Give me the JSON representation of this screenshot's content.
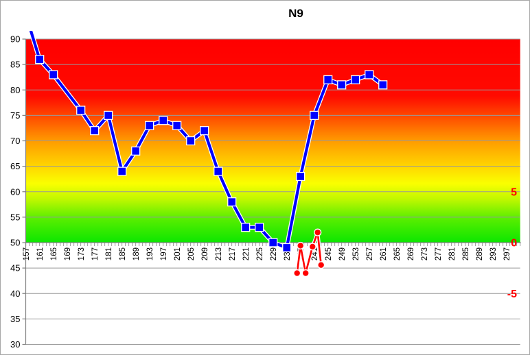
{
  "chart_data": {
    "type": "line",
    "title": "N9",
    "legend": "none",
    "x_axis": {
      "labels": [
        "157",
        "161",
        "165",
        "169",
        "173",
        "177",
        "181",
        "185",
        "189",
        "193",
        "197",
        "201",
        "205",
        "209",
        "213",
        "217",
        "221",
        "225",
        "229",
        "233",
        "237",
        "241",
        "245",
        "249",
        "253",
        "257",
        "261",
        "265",
        "269",
        "273",
        "277",
        "281",
        "285",
        "289",
        "293",
        "297"
      ],
      "label_start": 157,
      "label_step": 4,
      "category_min": 157,
      "category_max": 301,
      "minor_tick_every": 1,
      "label_rotation": "vertical-bottom-to-top"
    },
    "y_left": {
      "min": 30,
      "max": 90,
      "step": 5,
      "labels": [
        90,
        85,
        80,
        75,
        70,
        65,
        60,
        55,
        50,
        45,
        40,
        35,
        30
      ],
      "axis_crosses_at": 50,
      "label_color": "#000000"
    },
    "y_right": {
      "labels": [
        "5",
        "0",
        "-5"
      ],
      "values": [
        5,
        0,
        -5
      ],
      "label_color": "#FF0000",
      "alignment_note": "right 0 aligns with left 50, right 5 with left 60, right -5 with left 40"
    },
    "series": [
      {
        "name": "main-line",
        "color": "#0000FF",
        "marker": "square",
        "axis": "left",
        "x": [
          161,
          165,
          173,
          177,
          181,
          185,
          189,
          193,
          197,
          201,
          205,
          209,
          213,
          217,
          221,
          225,
          229,
          233,
          237,
          241,
          245,
          249,
          253,
          257,
          261
        ],
        "y": [
          86,
          83,
          76,
          72,
          75,
          64,
          68,
          73,
          74,
          73,
          70,
          72,
          64,
          58,
          53,
          53,
          50,
          49,
          63,
          75,
          82,
          81,
          82,
          83,
          81
        ],
        "clipped_entry": {
          "x": 158.5,
          "y": 91.5,
          "note": "line enters clipped at plot top above 90"
        }
      },
      {
        "name": "secondary-line",
        "color": "#FF0000",
        "marker": "circle",
        "axis": "right",
        "x": [
          236,
          237,
          238.5,
          240.5,
          242,
          243
        ],
        "y": [
          -3,
          -0.3,
          -3,
          -0.4,
          1,
          -2.2
        ]
      }
    ],
    "plot_background": {
      "type": "vertical-gradient",
      "from_value": 90,
      "to_value": 50,
      "below_color": "#FFFFFF",
      "stops": [
        {
          "offset": 0.0,
          "color": "#FF0000"
        },
        {
          "offset": 0.28,
          "color": "#FF0A00"
        },
        {
          "offset": 0.38,
          "color": "#FF4A00"
        },
        {
          "offset": 0.5,
          "color": "#FF9B00"
        },
        {
          "offset": 0.63,
          "color": "#FFD800"
        },
        {
          "offset": 0.71,
          "color": "#FAFF00"
        },
        {
          "offset": 0.79,
          "color": "#BDF700"
        },
        {
          "offset": 0.88,
          "color": "#5AEE00"
        },
        {
          "offset": 1.0,
          "color": "#0CE600"
        }
      ]
    },
    "gridline_color": "#999999",
    "axis_color": "#808080"
  }
}
